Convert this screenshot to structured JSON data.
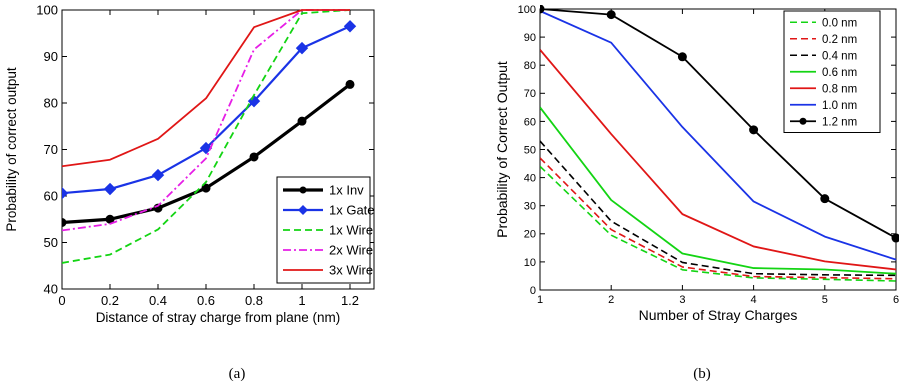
{
  "panels": [
    {
      "caption": "(a)"
    },
    {
      "caption": "(b)"
    }
  ],
  "chart_data": [
    {
      "type": "line",
      "xlabel": "Distance of stray charge from plane (nm)",
      "ylabel": "Probability of correct output",
      "xlim": [
        0,
        1.3
      ],
      "ylim": [
        40,
        100
      ],
      "xticks": [
        0,
        0.2,
        0.4,
        0.6,
        0.8,
        1,
        1.2
      ],
      "xtick_labels": [
        "0",
        "0.2",
        "0.4",
        "0.6",
        "0.8",
        "1",
        "1.2"
      ],
      "yticks": [
        40,
        50,
        60,
        70,
        80,
        90,
        100
      ],
      "ytick_labels": [
        "40",
        "50",
        "60",
        "70",
        "80",
        "90",
        "100"
      ],
      "legend_position": "lower-right",
      "grid": false,
      "x": [
        0,
        0.2,
        0.4,
        0.6,
        0.8,
        1.0,
        1.2
      ],
      "series": [
        {
          "name": "1x Inv",
          "color": "#000000",
          "dash": "solid",
          "width": 3.2,
          "marker": "circle",
          "values": [
            54.3,
            55.0,
            57.4,
            61.7,
            68.4,
            76.1,
            84.0
          ]
        },
        {
          "name": "1x Gate",
          "color": "#1a33e6",
          "dash": "solid",
          "width": 2.2,
          "marker": "diamond",
          "values": [
            60.6,
            61.5,
            64.5,
            70.3,
            80.4,
            91.8,
            96.5
          ]
        },
        {
          "name": "1x Wire",
          "color": "#13d413",
          "dash": "dash",
          "width": 1.8,
          "marker": "none",
          "values": [
            45.6,
            47.4,
            52.8,
            63.0,
            81.7,
            99.3,
            100.0
          ]
        },
        {
          "name": "2x Wire",
          "color": "#e61ee6",
          "dash": "dashdot",
          "width": 1.8,
          "marker": "none",
          "values": [
            52.6,
            54.0,
            57.9,
            68.1,
            91.5,
            100.0,
            100.0
          ]
        },
        {
          "name": "3x Wire",
          "color": "#e01616",
          "dash": "solid",
          "width": 1.8,
          "marker": "none",
          "values": [
            66.4,
            67.8,
            72.3,
            81.0,
            96.3,
            100.0,
            100.0
          ]
        }
      ]
    },
    {
      "type": "line",
      "xlabel": "Number of Stray Charges",
      "ylabel": "Probability of Correct Output",
      "xlim": [
        1,
        6
      ],
      "ylim": [
        0,
        100
      ],
      "xticks": [
        1,
        2,
        3,
        4,
        5,
        6
      ],
      "xtick_labels": [
        "1",
        "2",
        "3",
        "4",
        "5",
        "6"
      ],
      "yticks": [
        0,
        10,
        20,
        30,
        40,
        50,
        60,
        70,
        80,
        90,
        100
      ],
      "ytick_labels": [
        "0",
        "10",
        "20",
        "30",
        "40",
        "50",
        "60",
        "70",
        "80",
        "90",
        "100"
      ],
      "legend_position": "top-right",
      "grid": false,
      "x": [
        1,
        2,
        3,
        4,
        5,
        6
      ],
      "series": [
        {
          "name": "0.0 nm",
          "color": "#13d413",
          "dash": "dash",
          "width": 1.6,
          "marker": "none",
          "values": [
            44.0,
            19.5,
            7.2,
            4.3,
            3.8,
            3.2
          ]
        },
        {
          "name": "0.2 nm",
          "color": "#e01616",
          "dash": "dash",
          "width": 1.6,
          "marker": "none",
          "values": [
            47.0,
            21.5,
            8.2,
            4.8,
            4.4,
            4.0
          ]
        },
        {
          "name": "0.4 nm",
          "color": "#000000",
          "dash": "dash",
          "width": 1.6,
          "marker": "none",
          "values": [
            53.0,
            24.5,
            9.8,
            5.8,
            5.4,
            5.2
          ]
        },
        {
          "name": "0.6 nm",
          "color": "#13d413",
          "dash": "solid",
          "width": 1.8,
          "marker": "none",
          "values": [
            65.0,
            32.0,
            13.0,
            7.8,
            7.3,
            5.8
          ]
        },
        {
          "name": "0.8 nm",
          "color": "#e01616",
          "dash": "solid",
          "width": 1.8,
          "marker": "none",
          "values": [
            85.5,
            55.5,
            27.0,
            15.5,
            10.2,
            7.3
          ]
        },
        {
          "name": "1.0 nm",
          "color": "#1a33e6",
          "dash": "solid",
          "width": 1.8,
          "marker": "none",
          "values": [
            99.3,
            88.0,
            58.0,
            31.5,
            19.0,
            10.8
          ]
        },
        {
          "name": "1.2 nm",
          "color": "#000000",
          "dash": "solid",
          "width": 1.8,
          "marker": "circle",
          "values": [
            100.0,
            98.0,
            83.0,
            57.0,
            32.5,
            18.5
          ]
        }
      ]
    }
  ]
}
